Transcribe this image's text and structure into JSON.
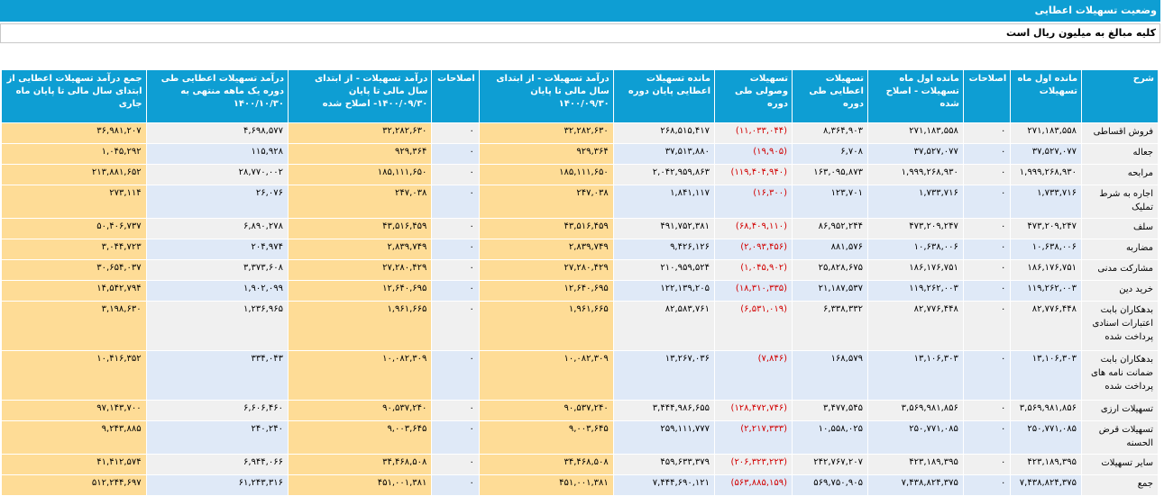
{
  "title": "وضعیت تسهیلات اعطایی",
  "note": "کلیه مبالغ به میلیون ریال است",
  "colors": {
    "header_bg": "#0e9ed3",
    "row_grey": "#f0f0f0",
    "row_blue": "#dfe9f7",
    "yellow_col": "#fedc96",
    "negative": "#d10000"
  },
  "headers": [
    "شرح",
    "مانده اول ماه تسهیلات",
    "اصلاحات",
    "مانده اول ماه تسهیلات - اصلاح شده",
    "تسهیلات اعطایی طی دوره",
    "تسهیلات وصولی طی دوره",
    "مانده تسهیلات اعطایی پایان دوره",
    "درآمد تسهیلات - از ابتدای سال مالی تا پایان ۱۴۰۰/۰۹/۳۰",
    "اصلاحات",
    "درآمد تسهیلات - از ابتدای سال مالی تا پایان ۱۴۰۰/۰۹/۳۰- اصلاح شده",
    "درآمد تسهیلات اعطایی طی دوره یک ماهه منتهی به ۱۴۰۰/۱۰/۳۰",
    "جمع درآمد تسهیلات اعطایی از ابتدای سال مالی تا پایان ماه جاری"
  ],
  "rows": [
    [
      "فروش اقساطی",
      "۲۷۱,۱۸۳,۵۵۸",
      "۰",
      "۲۷۱,۱۸۳,۵۵۸",
      "۸,۳۶۴,۹۰۳",
      "(۱۱,۰۳۳,۰۴۴)",
      "۲۶۸,۵۱۵,۴۱۷",
      "۳۲,۲۸۲,۶۳۰",
      "۰",
      "۳۲,۲۸۲,۶۳۰",
      "۴,۶۹۸,۵۷۷",
      "۳۶,۹۸۱,۲۰۷"
    ],
    [
      "جعاله",
      "۳۷,۵۲۷,۰۷۷",
      "۰",
      "۳۷,۵۲۷,۰۷۷",
      "۶,۷۰۸",
      "(۱۹,۹۰۵)",
      "۳۷,۵۱۳,۸۸۰",
      "۹۲۹,۳۶۴",
      "۰",
      "۹۲۹,۳۶۴",
      "۱۱۵,۹۲۸",
      "۱,۰۴۵,۲۹۲"
    ],
    [
      "مرابحه",
      "۱,۹۹۹,۲۶۸,۹۳۰",
      "۰",
      "۱,۹۹۹,۲۶۸,۹۳۰",
      "۱۶۳,۰۹۵,۸۷۳",
      "(۱۱۹,۴۰۴,۹۴۰)",
      "۲,۰۴۲,۹۵۹,۸۶۳",
      "۱۸۵,۱۱۱,۶۵۰",
      "۰",
      "۱۸۵,۱۱۱,۶۵۰",
      "۲۸,۷۷۰,۰۰۲",
      "۲۱۳,۸۸۱,۶۵۲"
    ],
    [
      "اجاره به شرط تملیک",
      "۱,۷۳۳,۷۱۶",
      "۰",
      "۱,۷۳۳,۷۱۶",
      "۱۲۳,۷۰۱",
      "(۱۶,۳۰۰)",
      "۱,۸۴۱,۱۱۷",
      "۲۴۷,۰۳۸",
      "۰",
      "۲۴۷,۰۳۸",
      "۲۶,۰۷۶",
      "۲۷۳,۱۱۴"
    ],
    [
      "سلف",
      "۴۷۳,۲۰۹,۲۴۷",
      "۰",
      "۴۷۳,۲۰۹,۲۴۷",
      "۸۶,۹۵۲,۲۴۴",
      "(۶۸,۴۰۹,۱۱۰)",
      "۴۹۱,۷۵۲,۳۸۱",
      "۴۳,۵۱۶,۴۵۹",
      "۰",
      "۴۳,۵۱۶,۴۵۹",
      "۶,۸۹۰,۲۷۸",
      "۵۰,۴۰۶,۷۳۷"
    ],
    [
      "مضاربه",
      "۱۰,۶۳۸,۰۰۶",
      "۰",
      "۱۰,۶۳۸,۰۰۶",
      "۸۸۱,۵۷۶",
      "(۲,۰۹۳,۴۵۶)",
      "۹,۴۲۶,۱۲۶",
      "۲,۸۳۹,۷۴۹",
      "۰",
      "۲,۸۳۹,۷۴۹",
      "۲۰۴,۹۷۴",
      "۳,۰۴۴,۷۲۳"
    ],
    [
      "مشارکت مدنی",
      "۱۸۶,۱۷۶,۷۵۱",
      "۰",
      "۱۸۶,۱۷۶,۷۵۱",
      "۲۵,۸۲۸,۶۷۵",
      "(۱,۰۴۵,۹۰۲)",
      "۲۱۰,۹۵۹,۵۲۴",
      "۲۷,۲۸۰,۴۲۹",
      "۰",
      "۲۷,۲۸۰,۴۲۹",
      "۳,۳۷۳,۶۰۸",
      "۳۰,۶۵۴,۰۳۷"
    ],
    [
      "خرید دین",
      "۱۱۹,۲۶۲,۰۰۳",
      "۰",
      "۱۱۹,۲۶۲,۰۰۳",
      "۲۱,۱۸۷,۵۳۷",
      "(۱۸,۳۱۰,۳۳۵)",
      "۱۲۲,۱۳۹,۲۰۵",
      "۱۲,۶۴۰,۶۹۵",
      "۰",
      "۱۲,۶۴۰,۶۹۵",
      "۱,۹۰۲,۰۹۹",
      "۱۴,۵۴۲,۷۹۴"
    ],
    [
      "بدهکاران بابت اعتبارات اسنادی پرداخت شده",
      "۸۲,۷۷۶,۴۴۸",
      "۰",
      "۸۲,۷۷۶,۴۴۸",
      "۶,۳۳۸,۳۳۲",
      "(۶,۵۳۱,۰۱۹)",
      "۸۲,۵۸۳,۷۶۱",
      "۱,۹۶۱,۶۶۵",
      "۰",
      "۱,۹۶۱,۶۶۵",
      "۱,۲۳۶,۹۶۵",
      "۳,۱۹۸,۶۳۰"
    ],
    [
      "بدهکاران بابت ضمانت نامه های پرداخت شده",
      "۱۳,۱۰۶,۳۰۳",
      "۰",
      "۱۳,۱۰۶,۳۰۳",
      "۱۶۸,۵۷۹",
      "(۷,۸۴۶)",
      "۱۳,۲۶۷,۰۳۶",
      "۱۰,۰۸۲,۳۰۹",
      "۰",
      "۱۰,۰۸۲,۳۰۹",
      "۳۳۴,۰۴۳",
      "۱۰,۴۱۶,۳۵۲"
    ],
    [
      "تسهیلات ارزی",
      "۳,۵۶۹,۹۸۱,۸۵۶",
      "۰",
      "۳,۵۶۹,۹۸۱,۸۵۶",
      "۳,۴۷۷,۵۴۵",
      "(۱۲۸,۴۷۲,۷۴۶)",
      "۳,۴۴۴,۹۸۶,۶۵۵",
      "۹۰,۵۳۷,۲۴۰",
      "۰",
      "۹۰,۵۳۷,۲۴۰",
      "۶,۶۰۶,۴۶۰",
      "۹۷,۱۴۳,۷۰۰"
    ],
    [
      "تسهیلات قرض الحسنه",
      "۲۵۰,۷۷۱,۰۸۵",
      "۰",
      "۲۵۰,۷۷۱,۰۸۵",
      "۱۰,۵۵۸,۰۲۵",
      "(۲,۲۱۷,۳۳۳)",
      "۲۵۹,۱۱۱,۷۷۷",
      "۹,۰۰۳,۶۴۵",
      "۰",
      "۹,۰۰۳,۶۴۵",
      "۲۴۰,۲۴۰",
      "۹,۲۴۳,۸۸۵"
    ],
    [
      "سایر تسهیلات",
      "۴۲۳,۱۸۹,۳۹۵",
      "۰",
      "۴۲۳,۱۸۹,۳۹۵",
      "۲۴۲,۷۶۷,۲۰۷",
      "(۲۰۶,۳۲۳,۲۲۳)",
      "۴۵۹,۶۳۳,۳۷۹",
      "۳۴,۴۶۸,۵۰۸",
      "۰",
      "۳۴,۴۶۸,۵۰۸",
      "۶,۹۴۴,۰۶۶",
      "۴۱,۴۱۲,۵۷۴"
    ],
    [
      "جمع",
      "۷,۴۳۸,۸۲۴,۳۷۵",
      "۰",
      "۷,۴۳۸,۸۲۴,۳۷۵",
      "۵۶۹,۷۵۰,۹۰۵",
      "(۵۶۳,۸۸۵,۱۵۹)",
      "۷,۴۴۴,۶۹۰,۱۲۱",
      "۴۵۱,۰۰۱,۳۸۱",
      "۰",
      "۴۵۱,۰۰۱,۳۸۱",
      "۶۱,۲۴۳,۳۱۶",
      "۵۱۲,۲۴۴,۶۹۷"
    ]
  ]
}
